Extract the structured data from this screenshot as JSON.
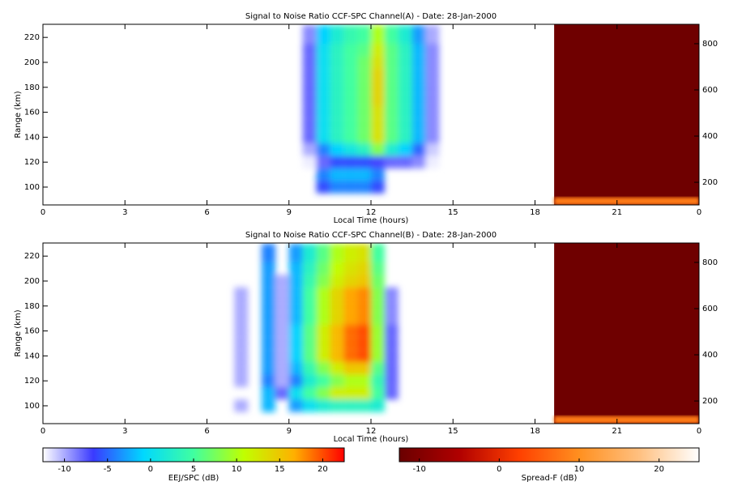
{
  "chart_data": [
    {
      "type": "heatmap",
      "title": "Signal to Noise Ratio CCF-SPC Channel(A) - Date: 28-Jan-2000",
      "xlabel": "Local Time (hours)",
      "ylabel": "Range (km)",
      "xlim": [
        0,
        24
      ],
      "xticks": [
        0,
        3,
        6,
        9,
        12,
        15,
        18,
        21,
        {
          "value": 24,
          "label": "0"
        }
      ],
      "ylim": [
        85.7,
        230.5
      ],
      "yticks": [
        100,
        120,
        140,
        160,
        180,
        200,
        220
      ],
      "y2lim": [
        102,
        884
      ],
      "y2ticks": [
        200,
        400,
        600,
        800
      ],
      "xedges": [
        9.5,
        10,
        10.5,
        11,
        11.5,
        12,
        12.5,
        13,
        13.5,
        14,
        14.5
      ],
      "yedges": [
        95,
        105,
        115,
        125,
        135,
        145,
        155,
        165,
        175,
        185,
        195,
        205,
        215,
        230
      ],
      "z": [
        [
          null,
          -6,
          -4,
          -4,
          -4,
          -6,
          null,
          null,
          null,
          null
        ],
        [
          null,
          -4,
          -2,
          -2,
          -2,
          -4,
          null,
          null,
          null,
          null
        ],
        [
          -12,
          -8,
          -6,
          -6,
          -6,
          -7,
          -8,
          -8,
          -9,
          -12
        ],
        [
          -10,
          -4,
          -1,
          1,
          3,
          8,
          2,
          -1,
          -5,
          -11
        ],
        [
          -8,
          0,
          3,
          5,
          7,
          13,
          6,
          3,
          -2,
          -9
        ],
        [
          -8,
          0,
          3,
          5,
          7,
          13,
          6,
          3,
          -2,
          -9
        ],
        [
          -8,
          0,
          3,
          5,
          7,
          13,
          6,
          3,
          -2,
          -9
        ],
        [
          -8,
          0,
          3,
          5,
          7,
          14,
          6,
          3,
          -2,
          -9
        ],
        [
          -8,
          0,
          3,
          5,
          7,
          14,
          6,
          3,
          -2,
          -9
        ],
        [
          -8,
          0,
          3,
          5,
          7,
          14,
          6,
          3,
          -2,
          -9
        ],
        [
          -8,
          0,
          3,
          5,
          7,
          13,
          6,
          3,
          -2,
          -9
        ],
        [
          -8,
          0,
          3,
          5,
          6,
          12,
          6,
          3,
          -2,
          -9
        ],
        [
          -9,
          -1,
          2,
          4,
          5,
          10,
          5,
          2,
          -3,
          -10
        ]
      ],
      "spread_f": [
        {
          "x": [
            18.7,
            24
          ],
          "y2": [
            102,
            884
          ],
          "value": -12
        },
        {
          "x": [
            18.7,
            24
          ],
          "y2": [
            102,
            135
          ],
          "value": 8
        }
      ]
    },
    {
      "type": "heatmap",
      "title": "Signal to Noise Ratio CCF-SPC Channel(B) - Date: 28-Jan-2000",
      "xlabel": "Local Time (hours)",
      "ylabel": "Range (km)",
      "xlim": [
        0,
        24
      ],
      "xticks": [
        0,
        3,
        6,
        9,
        12,
        15,
        18,
        21,
        {
          "value": 24,
          "label": "0"
        }
      ],
      "ylim": [
        85.7,
        230.5
      ],
      "yticks": [
        100,
        120,
        140,
        160,
        180,
        200,
        220
      ],
      "y2lim": [
        102,
        884
      ],
      "y2ticks": [
        200,
        400,
        600,
        800
      ],
      "xedges": [
        7,
        7.5,
        8,
        8.5,
        9,
        9.5,
        10,
        10.5,
        11,
        11.5,
        12,
        12.5,
        13
      ],
      "yedges": [
        95,
        105,
        115,
        125,
        135,
        145,
        155,
        165,
        175,
        185,
        195,
        205,
        215,
        230
      ],
      "z": [
        [
          -10,
          null,
          -2,
          null,
          -3,
          0,
          2,
          3,
          3,
          3,
          2,
          null
        ],
        [
          null,
          null,
          -2,
          -8,
          0,
          5,
          8,
          12,
          12,
          12,
          5,
          -8
        ],
        [
          -10,
          null,
          -4,
          -10,
          -4,
          2,
          5,
          8,
          10,
          10,
          4,
          -8
        ],
        [
          -10,
          null,
          -3,
          -10,
          -2,
          4,
          8,
          12,
          15,
          15,
          6,
          -8
        ],
        [
          -10,
          null,
          -3,
          -10,
          -1,
          6,
          12,
          16,
          19,
          20,
          9,
          -8
        ],
        [
          -10,
          null,
          -3,
          -10,
          -1,
          6,
          12,
          16,
          19,
          20,
          9,
          -8
        ],
        [
          -10,
          null,
          -3,
          -10,
          -1,
          6,
          12,
          16,
          19,
          20,
          9,
          -8
        ],
        [
          -10,
          null,
          -3,
          -10,
          -2,
          5,
          10,
          14,
          17,
          18,
          8,
          -9
        ],
        [
          -10,
          null,
          -3,
          -10,
          -2,
          5,
          10,
          14,
          17,
          18,
          8,
          -9
        ],
        [
          -10,
          null,
          -3,
          -10,
          -2,
          5,
          10,
          14,
          17,
          18,
          8,
          -9
        ],
        [
          null,
          null,
          -3,
          -10,
          -2,
          4,
          8,
          12,
          14,
          15,
          7,
          null
        ],
        [
          null,
          null,
          -3,
          null,
          -2,
          3,
          7,
          11,
          13,
          14,
          6,
          null
        ],
        [
          null,
          null,
          -4,
          null,
          -3,
          2,
          6,
          10,
          12,
          13,
          5,
          null
        ]
      ],
      "spread_f": [
        {
          "x": [
            18.7,
            24
          ],
          "y2": [
            102,
            884
          ],
          "value": -12
        },
        {
          "x": [
            18.7,
            24
          ],
          "y2": [
            102,
            135
          ],
          "value": 8
        }
      ]
    },
    {
      "type": "colorbar",
      "label": "EEJ/SPC (dB)",
      "clim": [
        -12.5,
        22.5
      ],
      "ticks": [
        -10,
        -5,
        0,
        5,
        10,
        15,
        20
      ],
      "colormap": [
        "#ffffff",
        "#3a3aff",
        "#00d8ff",
        "#40ffa0",
        "#c0ff00",
        "#ffb000",
        "#ff0000"
      ]
    },
    {
      "type": "colorbar",
      "label": "Spread-F (dB)",
      "clim": [
        -12.5,
        25
      ],
      "ticks": [
        -10,
        0,
        10,
        20
      ],
      "colormap": [
        "#6a0000",
        "#b00000",
        "#ff4000",
        "#ff9020",
        "#ffc080",
        "#ffffff"
      ]
    }
  ]
}
